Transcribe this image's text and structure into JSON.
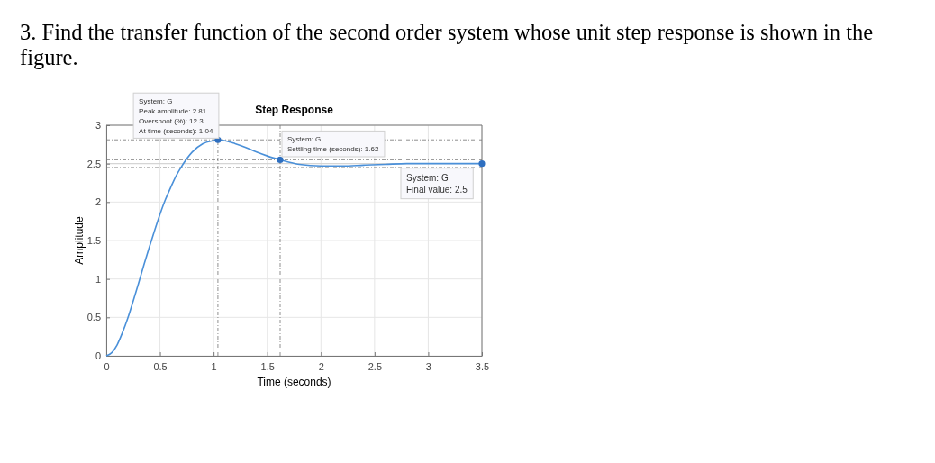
{
  "chart_data": {
    "type": "line",
    "title": "3. Find the transfer function of the second order system whose unit step response is shown in the figure.",
    "subtitle": "Step Response",
    "xlabel": "Time (seconds)",
    "ylabel": "Amplitude",
    "xlim": [
      0,
      3.5
    ],
    "ylim": [
      0,
      3
    ],
    "xticks": [
      0,
      0.5,
      1,
      1.5,
      2,
      2.5,
      3,
      3.5
    ],
    "yticks": [
      0,
      0.5,
      1,
      1.5,
      2,
      2.5,
      3
    ],
    "grid": true,
    "marker": "none",
    "series": [
      {
        "type": "line",
        "color": "#4a90d9",
        "x": [
          0,
          0.05,
          0.1,
          0.15,
          0.2,
          0.25,
          0.3,
          0.35,
          0.4,
          0.45,
          0.5,
          0.55,
          0.6,
          0.65,
          0.7,
          0.8,
          0.9,
          1.0,
          1.04,
          1.1,
          1.2,
          1.3,
          1.4,
          1.5,
          1.62,
          1.7,
          1.8,
          2.0,
          2.2,
          2.4,
          2.6,
          2.8,
          3.0,
          3.5
        ],
        "values": [
          0,
          0.04,
          0.14,
          0.3,
          0.49,
          0.71,
          0.94,
          1.18,
          1.41,
          1.63,
          1.84,
          2.03,
          2.19,
          2.34,
          2.46,
          2.65,
          2.76,
          2.8,
          2.81,
          2.8,
          2.76,
          2.71,
          2.65,
          2.6,
          2.55,
          2.52,
          2.49,
          2.47,
          2.47,
          2.48,
          2.49,
          2.5,
          2.5,
          2.5
        ]
      },
      {
        "type": "scatter",
        "color": "#2e6fc0",
        "marker": "circle",
        "x": [
          1.04,
          1.62,
          3.5
        ],
        "values": [
          2.81,
          2.55,
          2.5
        ]
      }
    ],
    "ref_lines": [
      {
        "axis": "y",
        "value": 2.5,
        "color": "#cccccc",
        "line_style": "solid"
      },
      {
        "axis": "y",
        "value": 2.81,
        "color": "#444444",
        "line_style": "dashed"
      },
      {
        "axis": "y",
        "value": 2.55,
        "color": "#444444",
        "line_style": "dashed"
      },
      {
        "axis": "y",
        "value": 2.45,
        "color": "#444444",
        "line_style": "dashed"
      },
      {
        "axis": "x",
        "value": 1.04,
        "color": "#444444",
        "line_style": "dashed"
      },
      {
        "axis": "x",
        "value": 1.62,
        "color": "#444444",
        "line_style": "dashed"
      }
    ],
    "annotations": [
      {
        "text": "System: G\nPeak amplitude: 2.81\nOvershoot (%): 12.3\nAt time (seconds): 1.04",
        "x": 1.04,
        "y": 2.81
      },
      {
        "text": "System: G\nSettling time (seconds): 1.62",
        "x": 1.62,
        "y": 2.55
      },
      {
        "text": "System: G\nFinal value: 2.5",
        "x": 3.5,
        "y": 2.5
      }
    ]
  }
}
